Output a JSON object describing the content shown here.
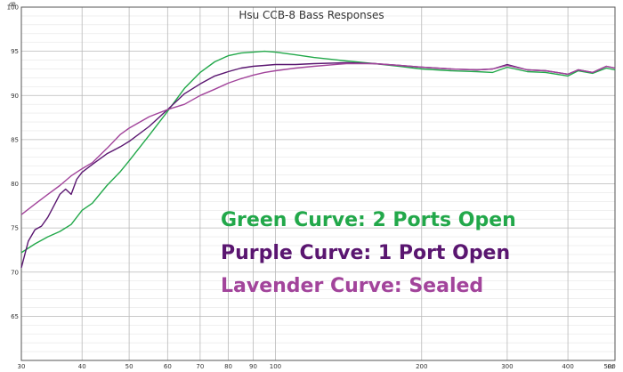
{
  "chart_data": {
    "type": "line",
    "title": "Hsu CCB-8 Bass Responses",
    "ylabel": "dB",
    "xunit": "Hz",
    "xscale": "log",
    "xlim": [
      30,
      500
    ],
    "ylim": [
      60,
      100
    ],
    "grid": true,
    "xticks": [
      {
        "v": 30,
        "label": "30"
      },
      {
        "v": 40,
        "label": "40"
      },
      {
        "v": 50,
        "label": "50"
      },
      {
        "v": 60,
        "label": "60"
      },
      {
        "v": 70,
        "label": "70"
      },
      {
        "v": 80,
        "label": "80"
      },
      {
        "v": 90,
        "label": "90"
      },
      {
        "v": 100,
        "label": "100"
      },
      {
        "v": 200,
        "label": "200"
      },
      {
        "v": 300,
        "label": "300"
      },
      {
        "v": 400,
        "label": "400"
      },
      {
        "v": 500,
        "label": "500"
      }
    ],
    "yticks": [
      {
        "v": 60,
        "label": ""
      },
      {
        "v": 65,
        "label": "65"
      },
      {
        "v": 70,
        "label": "70"
      },
      {
        "v": 75,
        "label": "75"
      },
      {
        "v": 80,
        "label": "80"
      },
      {
        "v": 85,
        "label": "85"
      },
      {
        "v": 90,
        "label": "90"
      },
      {
        "v": 95,
        "label": "95"
      },
      {
        "v": 100,
        "label": "100"
      }
    ],
    "annotations": [
      {
        "text": "Green Curve: 2 Ports Open",
        "color": "#22A84A"
      },
      {
        "text": "Purple Curve: 1 Port Open",
        "color": "#5A1670"
      },
      {
        "text": "Lavender Curve: Sealed",
        "color": "#A2449B"
      }
    ],
    "series": [
      {
        "color": "#22A84A",
        "x": [
          30,
          32,
          34,
          36,
          38,
          40,
          42,
          45,
          48,
          50,
          55,
          60,
          65,
          70,
          75,
          80,
          85,
          90,
          95,
          100,
          110,
          120,
          140,
          160,
          180,
          200,
          230,
          260,
          280,
          300,
          330,
          360,
          390,
          400,
          420,
          450,
          480,
          500
        ],
        "y": [
          72.2,
          73.2,
          74.0,
          74.6,
          75.4,
          77.0,
          77.8,
          79.8,
          81.4,
          82.6,
          85.5,
          88.2,
          90.8,
          92.6,
          93.8,
          94.5,
          94.8,
          94.9,
          95.0,
          94.9,
          94.6,
          94.3,
          93.9,
          93.6,
          93.3,
          93.0,
          92.8,
          92.7,
          92.6,
          93.2,
          92.7,
          92.6,
          92.3,
          92.2,
          92.8,
          92.5,
          93.1,
          92.9
        ]
      },
      {
        "color": "#5A1670",
        "x": [
          30,
          31,
          32,
          33,
          34,
          35,
          36,
          37,
          38,
          39,
          40,
          42,
          45,
          48,
          50,
          55,
          60,
          65,
          70,
          75,
          80,
          85,
          90,
          95,
          100,
          110,
          120,
          140,
          160,
          180,
          200,
          230,
          260,
          280,
          300,
          330,
          360,
          390,
          400,
          420,
          450,
          480,
          500
        ],
        "y": [
          70.5,
          73.5,
          74.8,
          75.2,
          76.2,
          77.5,
          78.8,
          79.4,
          78.8,
          80.5,
          81.3,
          82.2,
          83.4,
          84.2,
          84.8,
          86.5,
          88.4,
          90.2,
          91.3,
          92.2,
          92.7,
          93.1,
          93.3,
          93.4,
          93.5,
          93.5,
          93.6,
          93.7,
          93.6,
          93.4,
          93.2,
          93.0,
          92.9,
          93.0,
          93.5,
          92.9,
          92.8,
          92.5,
          92.4,
          92.9,
          92.6,
          93.3,
          93.1
        ]
      },
      {
        "color": "#A2449B",
        "x": [
          30,
          32,
          34,
          36,
          38,
          40,
          42,
          45,
          48,
          50,
          55,
          60,
          65,
          70,
          75,
          80,
          85,
          90,
          95,
          100,
          110,
          120,
          140,
          160,
          180,
          200,
          230,
          260,
          280,
          300,
          330,
          360,
          390,
          400,
          420,
          450,
          480,
          500
        ],
        "y": [
          76.5,
          77.7,
          78.8,
          79.8,
          80.9,
          81.7,
          82.4,
          84.0,
          85.6,
          86.3,
          87.6,
          88.4,
          89.0,
          90.0,
          90.7,
          91.4,
          91.9,
          92.3,
          92.6,
          92.8,
          93.1,
          93.3,
          93.6,
          93.6,
          93.4,
          93.2,
          93.0,
          92.9,
          93.0,
          93.4,
          92.9,
          92.8,
          92.5,
          92.4,
          92.9,
          92.6,
          93.3,
          93.1
        ]
      }
    ]
  }
}
